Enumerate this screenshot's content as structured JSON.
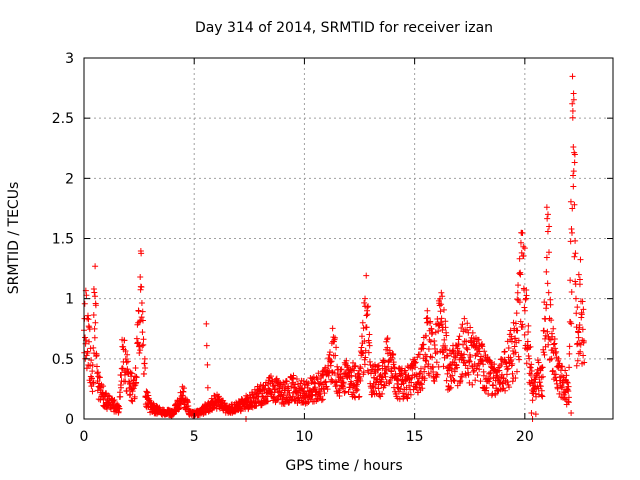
{
  "chart_data": {
    "type": "scatter",
    "title": "Day 314 of 2014, SRMTID for receiver izan",
    "xlabel": "GPS time / hours",
    "ylabel": "SRMTID / TECUs",
    "xlim": [
      0,
      24
    ],
    "ylim": [
      0,
      3
    ],
    "xticks": [
      0,
      5,
      10,
      15,
      20
    ],
    "xtick_labels": [
      "0",
      "5",
      "10",
      "15",
      "20"
    ],
    "yticks": [
      0,
      0.5,
      1,
      1.5,
      2,
      2.5,
      3
    ],
    "ytick_labels": [
      "0",
      "0.5",
      "1",
      "1.5",
      "2",
      "2.5",
      "3"
    ],
    "grid": true,
    "marker": "+",
    "series": [
      {
        "name": "SRMTID",
        "color": "#ff0000",
        "profile": [
          [
            0.0,
            0.85
          ],
          [
            0.1,
            0.75
          ],
          [
            0.25,
            0.55
          ],
          [
            0.4,
            0.35
          ],
          [
            0.5,
            0.95
          ],
          [
            0.6,
            0.3
          ],
          [
            0.8,
            0.22
          ],
          [
            1.0,
            0.15
          ],
          [
            1.3,
            0.12
          ],
          [
            1.6,
            0.08
          ],
          [
            1.75,
            0.55
          ],
          [
            1.9,
            0.4
          ],
          [
            2.1,
            0.3
          ],
          [
            2.3,
            0.22
          ],
          [
            2.5,
            0.75
          ],
          [
            2.6,
            1.05
          ],
          [
            2.8,
            0.2
          ],
          [
            3.0,
            0.1
          ],
          [
            3.5,
            0.06
          ],
          [
            4.0,
            0.05
          ],
          [
            4.3,
            0.12
          ],
          [
            4.5,
            0.2
          ],
          [
            4.8,
            0.05
          ],
          [
            5.0,
            0.04
          ],
          [
            5.3,
            0.06
          ],
          [
            5.6,
            0.1
          ],
          [
            6.0,
            0.15
          ],
          [
            6.5,
            0.08
          ],
          [
            7.0,
            0.1
          ],
          [
            7.5,
            0.15
          ],
          [
            8.0,
            0.2
          ],
          [
            8.5,
            0.25
          ],
          [
            9.0,
            0.22
          ],
          [
            9.5,
            0.25
          ],
          [
            10.0,
            0.22
          ],
          [
            10.5,
            0.25
          ],
          [
            11.0,
            0.3
          ],
          [
            11.3,
            0.55
          ],
          [
            11.6,
            0.3
          ],
          [
            12.0,
            0.35
          ],
          [
            12.5,
            0.3
          ],
          [
            12.8,
            0.9
          ],
          [
            13.0,
            0.35
          ],
          [
            13.5,
            0.3
          ],
          [
            13.8,
            0.5
          ],
          [
            14.2,
            0.3
          ],
          [
            14.6,
            0.3
          ],
          [
            15.0,
            0.35
          ],
          [
            15.3,
            0.4
          ],
          [
            15.6,
            0.65
          ],
          [
            15.9,
            0.45
          ],
          [
            16.2,
            0.85
          ],
          [
            16.5,
            0.4
          ],
          [
            17.0,
            0.5
          ],
          [
            17.3,
            0.6
          ],
          [
            17.6,
            0.5
          ],
          [
            18.0,
            0.45
          ],
          [
            18.4,
            0.35
          ],
          [
            18.8,
            0.3
          ],
          [
            19.2,
            0.45
          ],
          [
            19.6,
            0.6
          ],
          [
            19.9,
            1.2
          ],
          [
            20.2,
            0.5
          ],
          [
            20.4,
            0.2
          ],
          [
            20.6,
            0.35
          ],
          [
            20.8,
            0.3
          ],
          [
            21.0,
            1.3
          ],
          [
            21.2,
            0.6
          ],
          [
            21.5,
            0.35
          ],
          [
            21.8,
            0.3
          ],
          [
            22.0,
            0.25
          ],
          [
            22.2,
            2.45
          ],
          [
            22.35,
            0.6
          ],
          [
            22.5,
            1.0
          ],
          [
            22.7,
            0.6
          ]
        ],
        "outliers": [
          [
            0.45,
            1.08
          ],
          [
            0.5,
            1.02
          ],
          [
            2.55,
            1.18
          ],
          [
            2.58,
            1.1
          ],
          [
            5.55,
            0.79
          ],
          [
            5.57,
            0.61
          ],
          [
            5.6,
            0.45
          ],
          [
            5.62,
            0.26
          ],
          [
            7.35,
            0.0
          ],
          [
            12.75,
            1.0
          ],
          [
            16.25,
            1.02
          ],
          [
            20.0,
            1.42
          ],
          [
            20.3,
            0.05
          ],
          [
            20.35,
            0.0
          ],
          [
            20.5,
            0.04
          ],
          [
            21.0,
            1.76
          ],
          [
            21.05,
            1.7
          ],
          [
            21.1,
            1.6
          ],
          [
            22.15,
            2.62
          ],
          [
            22.18,
            2.56
          ],
          [
            22.2,
            2.26
          ],
          [
            22.22,
            2.06
          ],
          [
            22.25,
            1.78
          ],
          [
            22.28,
            1.48
          ],
          [
            22.1,
            0.05
          ],
          [
            22.0,
            0.18
          ],
          [
            21.9,
            0.12
          ],
          [
            22.45,
            1.2
          ],
          [
            22.5,
            1.12
          ]
        ]
      }
    ]
  }
}
